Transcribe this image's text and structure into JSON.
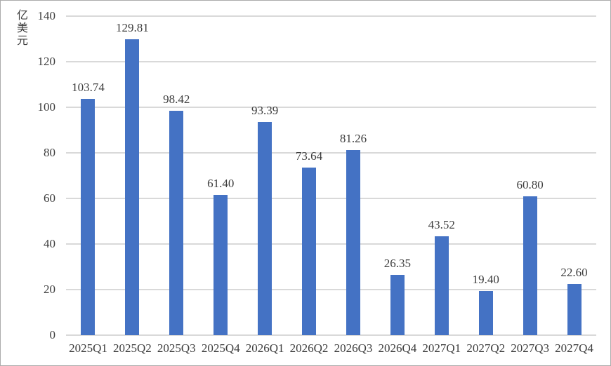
{
  "chart_data": {
    "type": "bar",
    "categories": [
      "2025Q1",
      "2025Q2",
      "2025Q3",
      "2025Q4",
      "2026Q1",
      "2026Q2",
      "2026Q3",
      "2026Q4",
      "2027Q1",
      "2027Q2",
      "2027Q3",
      "2027Q4"
    ],
    "values": [
      103.74,
      129.81,
      98.42,
      61.4,
      93.39,
      73.64,
      81.26,
      26.35,
      43.52,
      19.4,
      60.8,
      22.6
    ],
    "value_labels": [
      "103.74",
      "129.81",
      "98.42",
      "61.40",
      "93.39",
      "73.64",
      "81.26",
      "26.35",
      "43.52",
      "19.40",
      "60.80",
      "22.60"
    ],
    "title": "",
    "xlabel": "",
    "ylabel": "亿美元",
    "ylim": [
      0,
      140
    ],
    "ytick_step": 20,
    "ytick_labels": [
      "0",
      "20",
      "40",
      "60",
      "80",
      "100",
      "120",
      "140"
    ],
    "grid": true,
    "legend_position": "none",
    "colors": {
      "bar": "#4472C4",
      "gridline": "#D9D9D9",
      "axis_line": "#D9D9D9",
      "text": "#3D3D3D",
      "background": "#FFFFFF",
      "border": "#ABABAB"
    }
  }
}
